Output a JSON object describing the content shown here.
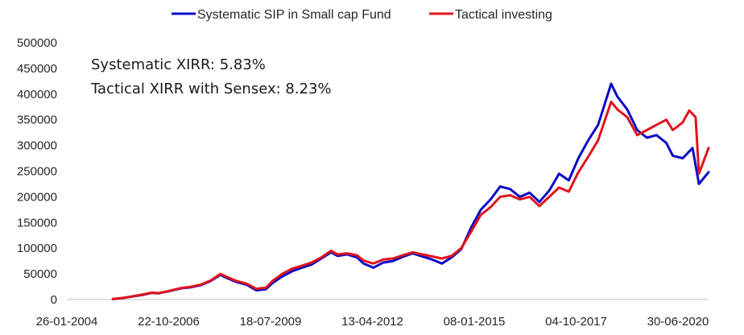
{
  "chart_data": {
    "type": "line",
    "title": "",
    "xlabel": "",
    "ylabel": "",
    "legend_position": "top",
    "grid": false,
    "x_tick_labels": [
      "26-01-2004",
      "22-10-2006",
      "18-07-2009",
      "13-04-2012",
      "08-01-2015",
      "04-10-2017",
      "30-06-2020"
    ],
    "xlim": [
      "2004-01-26",
      "2020-06-30"
    ],
    "y_ticks": [
      0,
      50000,
      100000,
      150000,
      200000,
      250000,
      300000,
      350000,
      400000,
      450000,
      500000
    ],
    "y_tick_labels": [
      "0",
      "50000",
      "100000",
      "150000",
      "200000",
      "250000",
      "300000",
      "350000",
      "400000",
      "450000",
      "500000"
    ],
    "ylim": [
      0,
      500000
    ],
    "annotations": [
      "Systematic XIRR: 5.83%",
      "Tactical XIRR with Sensex: 8.23%"
    ],
    "series": [
      {
        "name": "Systematic SIP in Small cap Fund",
        "color": "#0a0ac8",
        "points": [
          [
            "2005-04-01",
            1000
          ],
          [
            "2005-07-01",
            3000
          ],
          [
            "2005-10-01",
            6000
          ],
          [
            "2006-01-01",
            9000
          ],
          [
            "2006-04-01",
            13000
          ],
          [
            "2006-06-01",
            12000
          ],
          [
            "2006-09-01",
            16000
          ],
          [
            "2007-01-01",
            22000
          ],
          [
            "2007-04-01",
            24000
          ],
          [
            "2007-07-01",
            28000
          ],
          [
            "2007-10-01",
            36000
          ],
          [
            "2008-01-01",
            48000
          ],
          [
            "2008-03-01",
            42000
          ],
          [
            "2008-06-01",
            34000
          ],
          [
            "2008-09-01",
            29000
          ],
          [
            "2008-12-01",
            18000
          ],
          [
            "2009-03-01",
            20000
          ],
          [
            "2009-05-01",
            32000
          ],
          [
            "2009-08-01",
            45000
          ],
          [
            "2009-11-01",
            55000
          ],
          [
            "2010-02-01",
            62000
          ],
          [
            "2010-05-01",
            68000
          ],
          [
            "2010-08-01",
            80000
          ],
          [
            "2010-11-01",
            92000
          ],
          [
            "2011-01-01",
            85000
          ],
          [
            "2011-04-01",
            88000
          ],
          [
            "2011-07-01",
            82000
          ],
          [
            "2011-09-01",
            70000
          ],
          [
            "2011-12-01",
            62000
          ],
          [
            "2012-03-01",
            72000
          ],
          [
            "2012-06-01",
            75000
          ],
          [
            "2012-09-01",
            83000
          ],
          [
            "2012-12-01",
            90000
          ],
          [
            "2013-03-01",
            84000
          ],
          [
            "2013-06-01",
            78000
          ],
          [
            "2013-09-01",
            70000
          ],
          [
            "2013-12-01",
            82000
          ],
          [
            "2014-03-01",
            98000
          ],
          [
            "2014-06-01",
            140000
          ],
          [
            "2014-09-01",
            175000
          ],
          [
            "2014-12-01",
            195000
          ],
          [
            "2015-03-01",
            220000
          ],
          [
            "2015-06-01",
            215000
          ],
          [
            "2015-09-01",
            200000
          ],
          [
            "2015-12-01",
            208000
          ],
          [
            "2016-03-01",
            190000
          ],
          [
            "2016-06-01",
            212000
          ],
          [
            "2016-09-01",
            245000
          ],
          [
            "2016-12-01",
            232000
          ],
          [
            "2017-03-01",
            275000
          ],
          [
            "2017-06-01",
            310000
          ],
          [
            "2017-09-01",
            340000
          ],
          [
            "2018-01-01",
            420000
          ],
          [
            "2018-03-01",
            395000
          ],
          [
            "2018-06-01",
            370000
          ],
          [
            "2018-09-01",
            330000
          ],
          [
            "2018-12-01",
            315000
          ],
          [
            "2019-03-01",
            320000
          ],
          [
            "2019-06-01",
            305000
          ],
          [
            "2019-08-01",
            280000
          ],
          [
            "2019-11-01",
            275000
          ],
          [
            "2020-02-01",
            295000
          ],
          [
            "2020-04-01",
            225000
          ],
          [
            "2020-06-30",
            248000
          ]
        ]
      },
      {
        "name": "Tactical investing",
        "color": "#e0141c",
        "points": [
          [
            "2005-04-01",
            1000
          ],
          [
            "2005-07-01",
            3200
          ],
          [
            "2005-10-01",
            6300
          ],
          [
            "2006-01-01",
            9500
          ],
          [
            "2006-04-01",
            13500
          ],
          [
            "2006-06-01",
            12500
          ],
          [
            "2006-09-01",
            16500
          ],
          [
            "2007-01-01",
            22500
          ],
          [
            "2007-04-01",
            25000
          ],
          [
            "2007-07-01",
            29000
          ],
          [
            "2007-10-01",
            37000
          ],
          [
            "2008-01-01",
            50000
          ],
          [
            "2008-03-01",
            44000
          ],
          [
            "2008-06-01",
            36000
          ],
          [
            "2008-09-01",
            31000
          ],
          [
            "2008-12-01",
            21000
          ],
          [
            "2009-03-01",
            23000
          ],
          [
            "2009-05-01",
            36000
          ],
          [
            "2009-08-01",
            50000
          ],
          [
            "2009-11-01",
            60000
          ],
          [
            "2010-02-01",
            66000
          ],
          [
            "2010-05-01",
            72000
          ],
          [
            "2010-08-01",
            82000
          ],
          [
            "2010-11-01",
            95000
          ],
          [
            "2011-01-01",
            88000
          ],
          [
            "2011-04-01",
            90000
          ],
          [
            "2011-07-01",
            86000
          ],
          [
            "2011-09-01",
            76000
          ],
          [
            "2011-12-01",
            70000
          ],
          [
            "2012-03-01",
            78000
          ],
          [
            "2012-06-01",
            80000
          ],
          [
            "2012-09-01",
            86000
          ],
          [
            "2012-12-01",
            92000
          ],
          [
            "2013-03-01",
            88000
          ],
          [
            "2013-06-01",
            84000
          ],
          [
            "2013-09-01",
            80000
          ],
          [
            "2013-12-01",
            85000
          ],
          [
            "2014-03-01",
            100000
          ],
          [
            "2014-06-01",
            132000
          ],
          [
            "2014-09-01",
            165000
          ],
          [
            "2014-12-01",
            180000
          ],
          [
            "2015-03-01",
            200000
          ],
          [
            "2015-06-01",
            203000
          ],
          [
            "2015-09-01",
            195000
          ],
          [
            "2015-12-01",
            200000
          ],
          [
            "2016-03-01",
            182000
          ],
          [
            "2016-06-01",
            200000
          ],
          [
            "2016-09-01",
            218000
          ],
          [
            "2016-12-01",
            210000
          ],
          [
            "2017-03-01",
            248000
          ],
          [
            "2017-06-01",
            278000
          ],
          [
            "2017-09-01",
            310000
          ],
          [
            "2018-01-01",
            385000
          ],
          [
            "2018-03-01",
            370000
          ],
          [
            "2018-06-01",
            355000
          ],
          [
            "2018-09-01",
            320000
          ],
          [
            "2018-12-01",
            330000
          ],
          [
            "2019-03-01",
            340000
          ],
          [
            "2019-06-01",
            350000
          ],
          [
            "2019-08-01",
            330000
          ],
          [
            "2019-11-01",
            345000
          ],
          [
            "2020-01-01",
            368000
          ],
          [
            "2020-03-01",
            355000
          ],
          [
            "2020-04-01",
            245000
          ],
          [
            "2020-06-30",
            295000
          ]
        ]
      }
    ]
  }
}
